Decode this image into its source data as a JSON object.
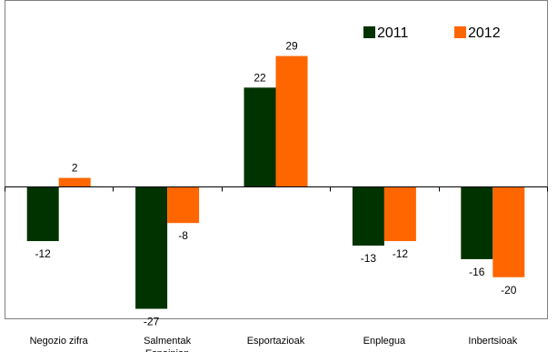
{
  "chart_data": {
    "type": "bar",
    "categories": [
      "Negozio zifra",
      "Salmentak Espainian",
      "Esportazioak",
      "Enplegua",
      "Inbertsioak"
    ],
    "series": [
      {
        "name": "2011",
        "color": "#003300",
        "values": [
          -12,
          -27,
          22,
          -13,
          -16
        ]
      },
      {
        "name": "2012",
        "color": "#ff6600",
        "values": [
          2,
          -8,
          29,
          -12,
          -20
        ]
      }
    ],
    "ylim": [
      -30,
      35
    ],
    "grid": false,
    "legend": "top-right",
    "frame_color": "#7f7f7f"
  }
}
